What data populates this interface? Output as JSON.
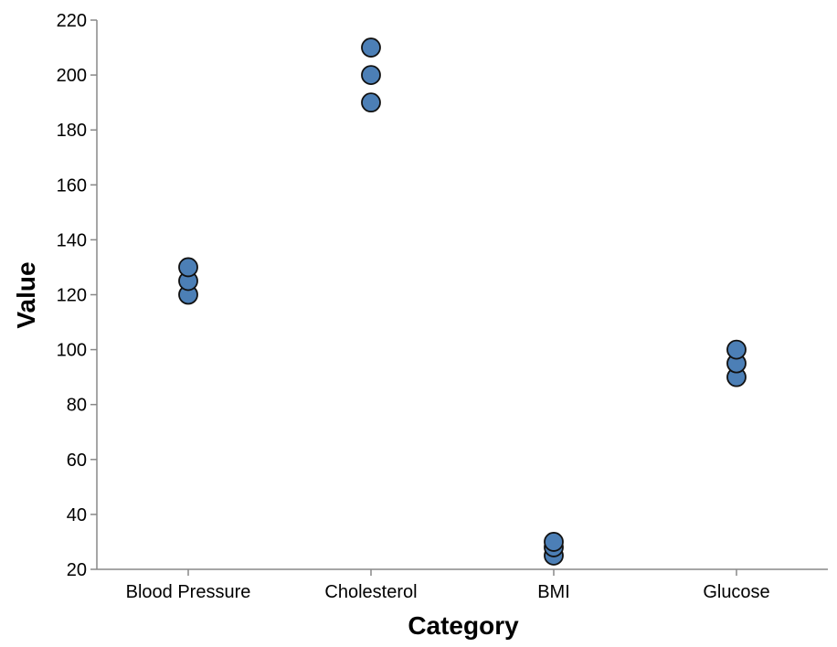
{
  "chart_data": {
    "type": "scatter",
    "title": "",
    "xlabel": "Category",
    "ylabel": "Value",
    "categories": [
      "Blood Pressure",
      "Cholesterol",
      "BMI",
      "Glucose"
    ],
    "ylim": [
      20,
      220
    ],
    "yticks": [
      20,
      40,
      60,
      80,
      100,
      120,
      140,
      160,
      180,
      200,
      220
    ],
    "grid": false,
    "points": [
      {
        "category": "Blood Pressure",
        "value": 120
      },
      {
        "category": "Blood Pressure",
        "value": 125
      },
      {
        "category": "Blood Pressure",
        "value": 130
      },
      {
        "category": "Cholesterol",
        "value": 190
      },
      {
        "category": "Cholesterol",
        "value": 200
      },
      {
        "category": "Cholesterol",
        "value": 210
      },
      {
        "category": "BMI",
        "value": 25
      },
      {
        "category": "BMI",
        "value": 28
      },
      {
        "category": "BMI",
        "value": 30
      },
      {
        "category": "Glucose",
        "value": 90
      },
      {
        "category": "Glucose",
        "value": 95
      },
      {
        "category": "Glucose",
        "value": 100
      }
    ],
    "colors": {
      "point_fill": "#4c7fb6",
      "point_stroke": "#111111",
      "axis": "#888888"
    }
  }
}
